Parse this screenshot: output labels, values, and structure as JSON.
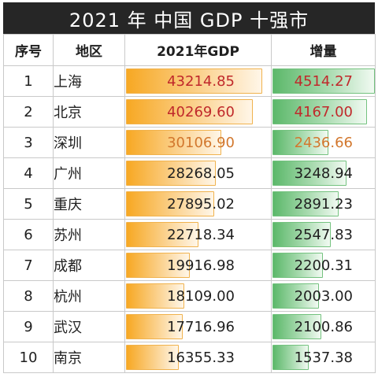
{
  "title": "2021 年 中国 GDP 十强市",
  "headers": {
    "rank": "序号",
    "region": "地区",
    "gdp": "2021年GDP",
    "increase": "增量"
  },
  "colors": {
    "title_bg": "#262626",
    "gdp_bar": "#f7a823",
    "increase_bar": "#5cb86a",
    "highlight_red": "#c0292b",
    "highlight_orange": "#d2772d"
  },
  "rows": [
    {
      "rank": "1",
      "region": "上海",
      "gdp": "43214.85",
      "increase": "4514.27",
      "highlight": "red"
    },
    {
      "rank": "2",
      "region": "北京",
      "gdp": "40269.60",
      "increase": "4167.00",
      "highlight": "red"
    },
    {
      "rank": "3",
      "region": "深圳",
      "gdp": "30106.90",
      "increase": "2436.66",
      "highlight": "orange"
    },
    {
      "rank": "4",
      "region": "广州",
      "gdp": "28268.05",
      "increase": "3248.94",
      "highlight": ""
    },
    {
      "rank": "5",
      "region": "重庆",
      "gdp": "27895.02",
      "increase": "2891.23",
      "highlight": ""
    },
    {
      "rank": "6",
      "region": "苏州",
      "gdp": "22718.34",
      "increase": "2547.83",
      "highlight": ""
    },
    {
      "rank": "7",
      "region": "成都",
      "gdp": "19916.98",
      "increase": "2200.31",
      "highlight": ""
    },
    {
      "rank": "8",
      "region": "杭州",
      "gdp": "18109.00",
      "increase": "2003.00",
      "highlight": ""
    },
    {
      "rank": "9",
      "region": "武汉",
      "gdp": "17716.96",
      "increase": "2100.86",
      "highlight": ""
    },
    {
      "rank": "10",
      "region": "南京",
      "gdp": "16355.33",
      "increase": "1537.38",
      "highlight": ""
    }
  ]
}
